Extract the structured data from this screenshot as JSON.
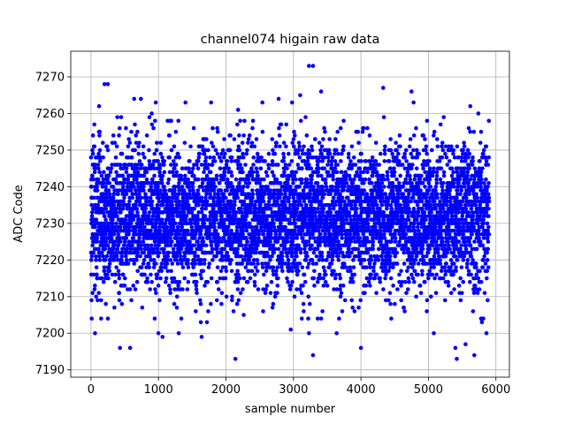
{
  "chart_data": {
    "type": "scatter",
    "title": "channel074 higain raw data",
    "xlabel": "sample number",
    "ylabel": "ADC Code",
    "xlim": [
      -300,
      6200
    ],
    "ylim": [
      7188,
      7277
    ],
    "xticks": [
      0,
      1000,
      2000,
      3000,
      4000,
      5000,
      6000
    ],
    "yticks": [
      7190,
      7200,
      7210,
      7220,
      7230,
      7240,
      7250,
      7260,
      7270
    ],
    "grid": true,
    "marker_color": "#0000ff",
    "n_samples": 5900,
    "center_value": 7232,
    "spread_std": 10,
    "notable_points": [
      {
        "x": 10,
        "y": 7204
      },
      {
        "x": 30,
        "y": 7254
      },
      {
        "x": 60,
        "y": 7200
      },
      {
        "x": 120,
        "y": 7262
      },
      {
        "x": 200,
        "y": 7268
      },
      {
        "x": 250,
        "y": 7268
      },
      {
        "x": 150,
        "y": 7204
      },
      {
        "x": 250,
        "y": 7204
      },
      {
        "x": 390,
        "y": 7259
      },
      {
        "x": 430,
        "y": 7196
      },
      {
        "x": 580,
        "y": 7196
      },
      {
        "x": 640,
        "y": 7264
      },
      {
        "x": 740,
        "y": 7264
      },
      {
        "x": 900,
        "y": 7260
      },
      {
        "x": 960,
        "y": 7263
      },
      {
        "x": 1000,
        "y": 7200
      },
      {
        "x": 1060,
        "y": 7199
      },
      {
        "x": 1400,
        "y": 7263
      },
      {
        "x": 1300,
        "y": 7200
      },
      {
        "x": 1640,
        "y": 7199
      },
      {
        "x": 1780,
        "y": 7263
      },
      {
        "x": 2140,
        "y": 7193
      },
      {
        "x": 2180,
        "y": 7261
      },
      {
        "x": 2540,
        "y": 7263
      },
      {
        "x": 2780,
        "y": 7264
      },
      {
        "x": 2980,
        "y": 7263
      },
      {
        "x": 2960,
        "y": 7201
      },
      {
        "x": 3100,
        "y": 7265
      },
      {
        "x": 3230,
        "y": 7273
      },
      {
        "x": 3290,
        "y": 7273
      },
      {
        "x": 3230,
        "y": 7200
      },
      {
        "x": 3290,
        "y": 7194
      },
      {
        "x": 3410,
        "y": 7266
      },
      {
        "x": 3640,
        "y": 7200
      },
      {
        "x": 4000,
        "y": 7196
      },
      {
        "x": 4330,
        "y": 7267
      },
      {
        "x": 4450,
        "y": 7204
      },
      {
        "x": 4750,
        "y": 7266
      },
      {
        "x": 4780,
        "y": 7263
      },
      {
        "x": 5080,
        "y": 7200
      },
      {
        "x": 5400,
        "y": 7196
      },
      {
        "x": 5420,
        "y": 7193
      },
      {
        "x": 5550,
        "y": 7197
      },
      {
        "x": 5620,
        "y": 7262
      },
      {
        "x": 5680,
        "y": 7194
      },
      {
        "x": 5740,
        "y": 7260
      },
      {
        "x": 5780,
        "y": 7204
      },
      {
        "x": 5860,
        "y": 7200
      }
    ]
  }
}
